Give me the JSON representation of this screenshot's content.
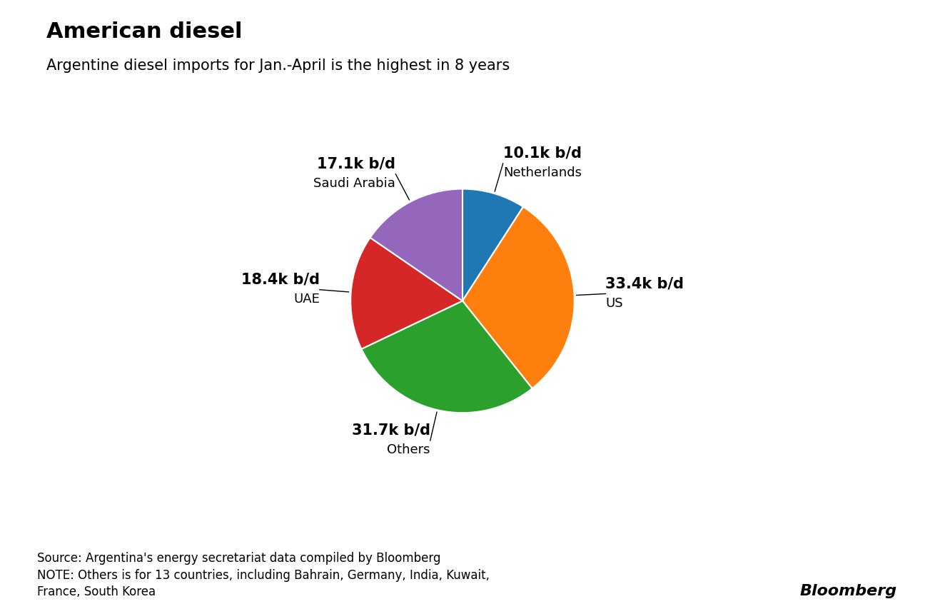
{
  "chart_data": {
    "type": "pie",
    "title": "American diesel",
    "subtitle": "Argentine diesel imports for Jan.-April is the highest in 8 years",
    "categories": [
      "Netherlands",
      "US",
      "Others",
      "UAE",
      "Saudi Arabia"
    ],
    "values": [
      10.1,
      33.4,
      31.7,
      18.4,
      17.1
    ],
    "value_labels": [
      "10.1k b/d",
      "33.4k b/d",
      "31.7k b/d",
      "18.4k b/d",
      "17.1k b/d"
    ],
    "data_labels": true,
    "annotations": [
      "Source: Argentina's energy secretariat data compiled by Bloomberg\nNOTE: Others is for 13 countries, including Bahrain, Germany, India, Kuwait,\nFrance, South Korea",
      "Bloomberg"
    ]
  }
}
